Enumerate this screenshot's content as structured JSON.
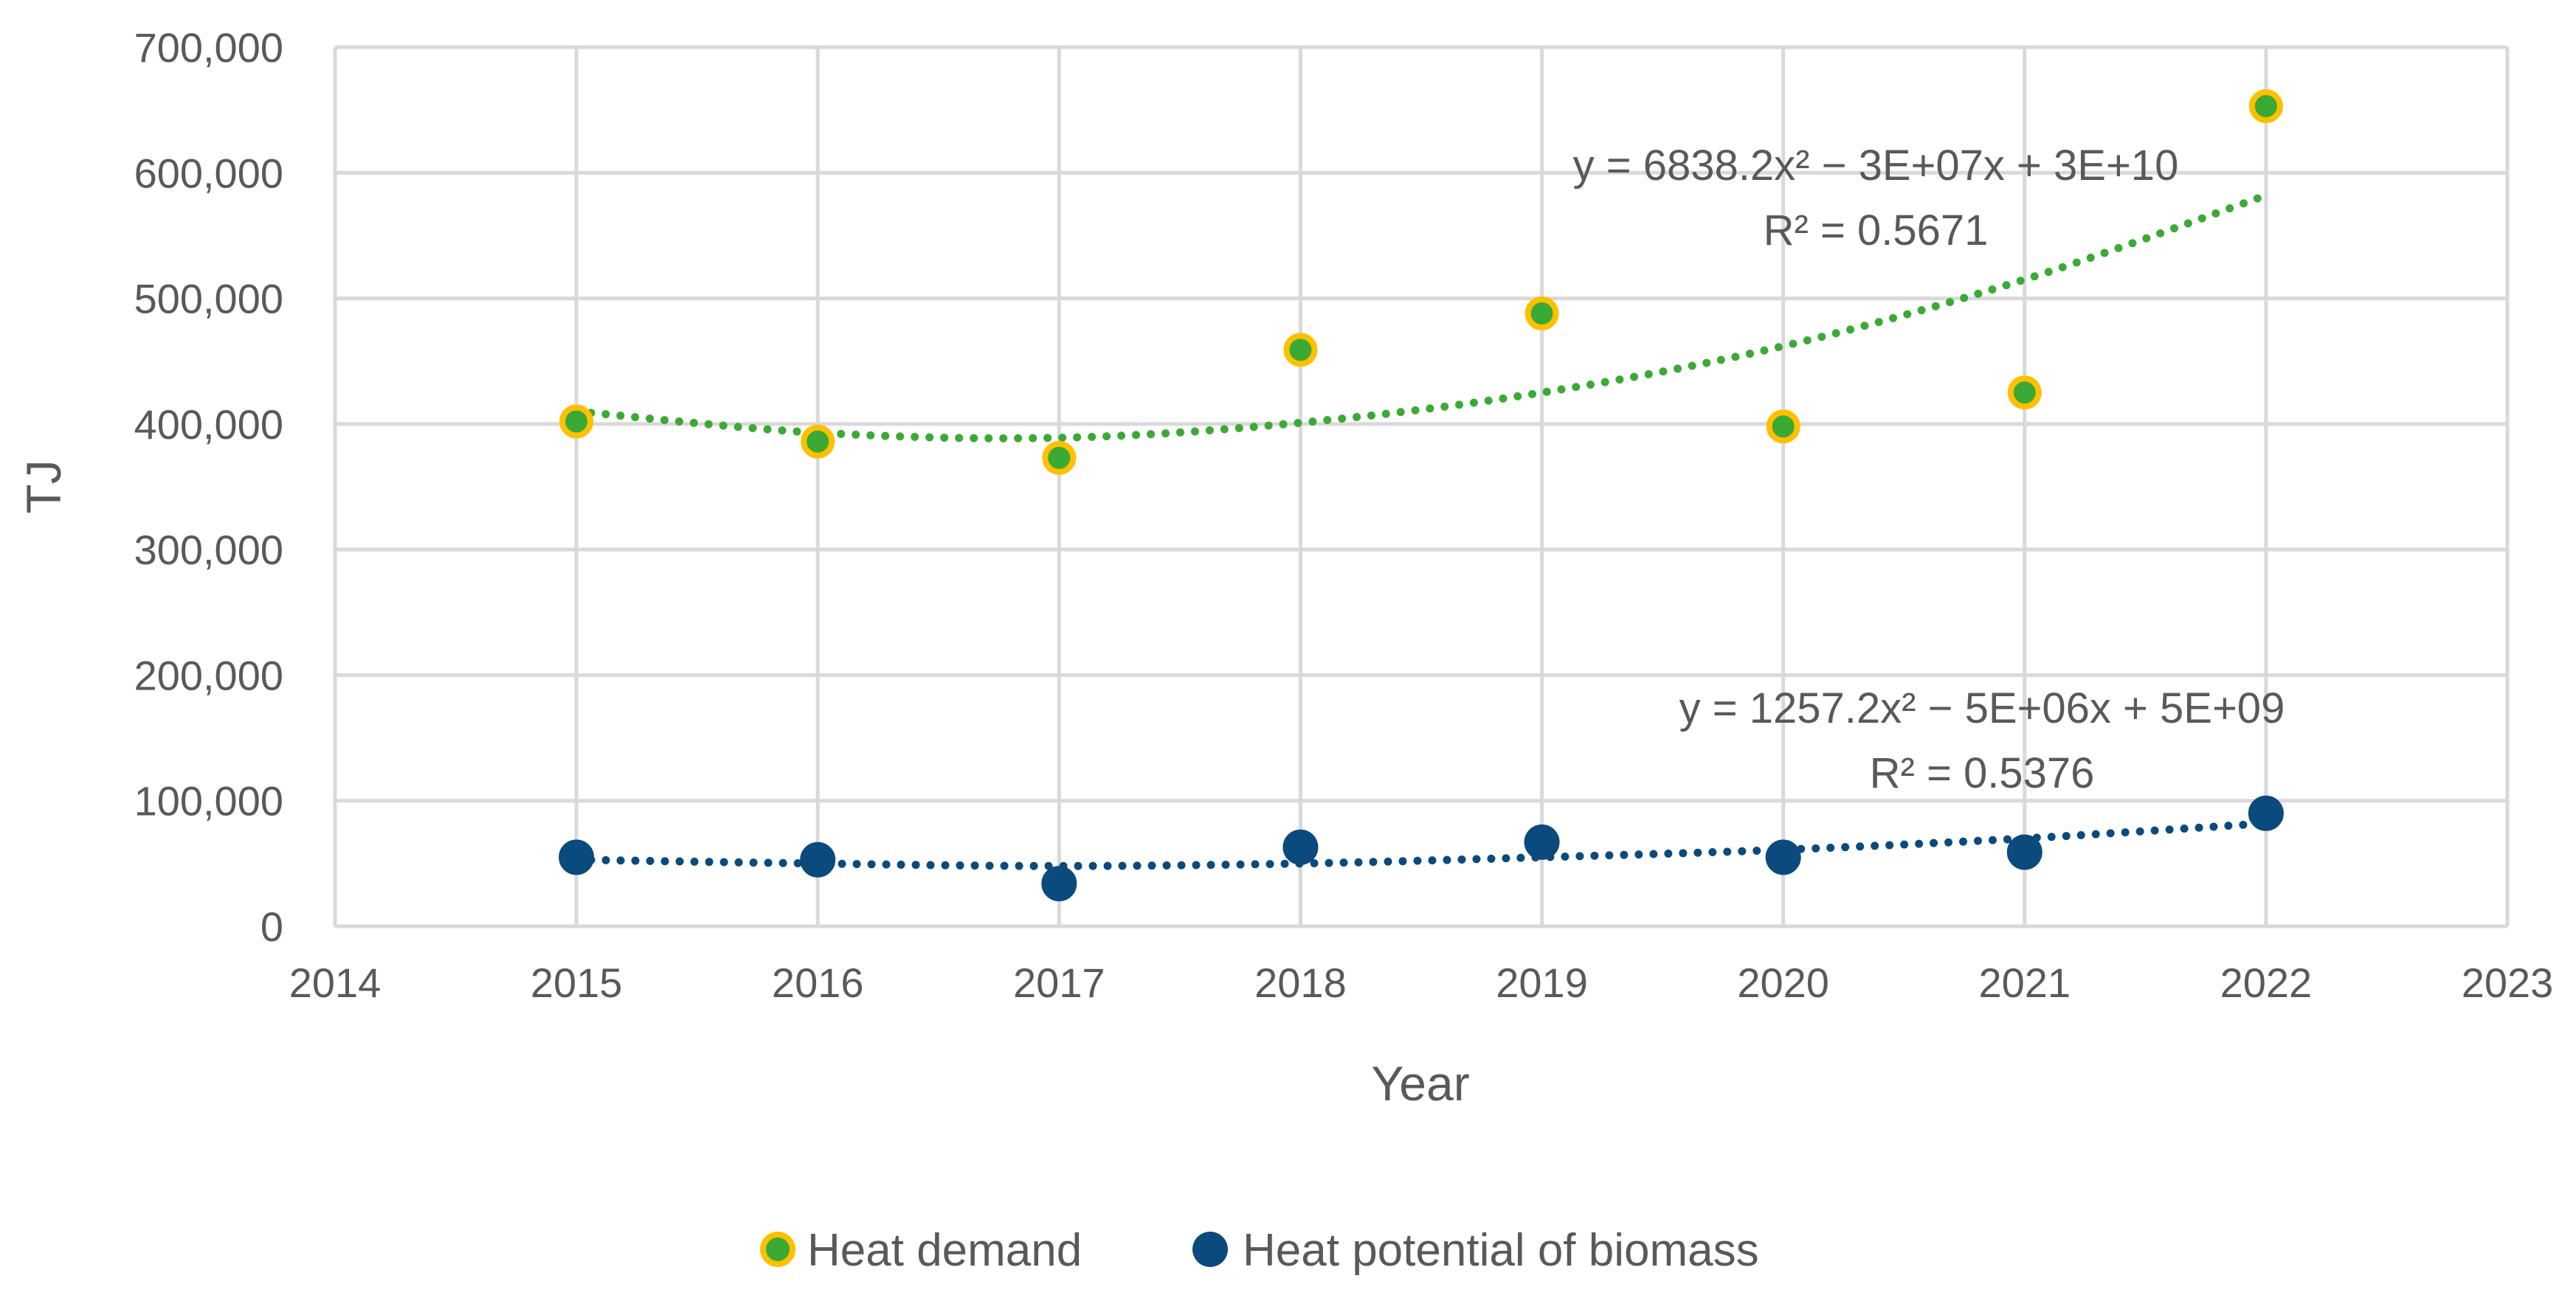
{
  "chart_data": {
    "type": "scatter",
    "title": "",
    "xlabel": "Year",
    "ylabel": "TJ",
    "xlim": [
      2014,
      2023
    ],
    "ylim": [
      0,
      700000
    ],
    "x_ticks": [
      "2014",
      "2015",
      "2016",
      "2017",
      "2018",
      "2019",
      "2020",
      "2021",
      "2022",
      "2023"
    ],
    "y_ticks": [
      "0",
      "100,000",
      "200,000",
      "300,000",
      "400,000",
      "500,000",
      "600,000",
      "700,000"
    ],
    "x": [
      2015,
      2016,
      2017,
      2018,
      2019,
      2020,
      2021,
      2022
    ],
    "grid": true,
    "legend_position": "bottom",
    "series": [
      {
        "name": "Heat demand",
        "values": [
          402000,
          386000,
          373000,
          459000,
          488000,
          398000,
          425000,
          653000
        ],
        "marker_fill": "#3aaa35",
        "marker_edge": "#ffc000",
        "trendline": {
          "type": "polynomial-2",
          "color": "#3aaa35",
          "values": [
            410000,
            393000,
            389000,
            401000,
            425000,
            462000,
            515000,
            582000
          ],
          "equation": "y = 6838.2x² − 3E+07x + 3E+10",
          "r2": "R² = 0.5671"
        }
      },
      {
        "name": "Heat potential of biomass",
        "values": [
          55000,
          53000,
          34000,
          63000,
          67000,
          55000,
          59000,
          90000
        ],
        "marker_fill": "#0b4a7d",
        "marker_edge": "#0b4a7d",
        "trendline": {
          "type": "polynomial-2",
          "color": "#0b4a7d",
          "values": [
            53000,
            50000,
            48000,
            50000,
            55000,
            61000,
            70000,
            82000
          ],
          "equation": "y = 1257.2x² − 5E+06x + 5E+09",
          "r2": "R² = 0.5376"
        }
      }
    ]
  }
}
